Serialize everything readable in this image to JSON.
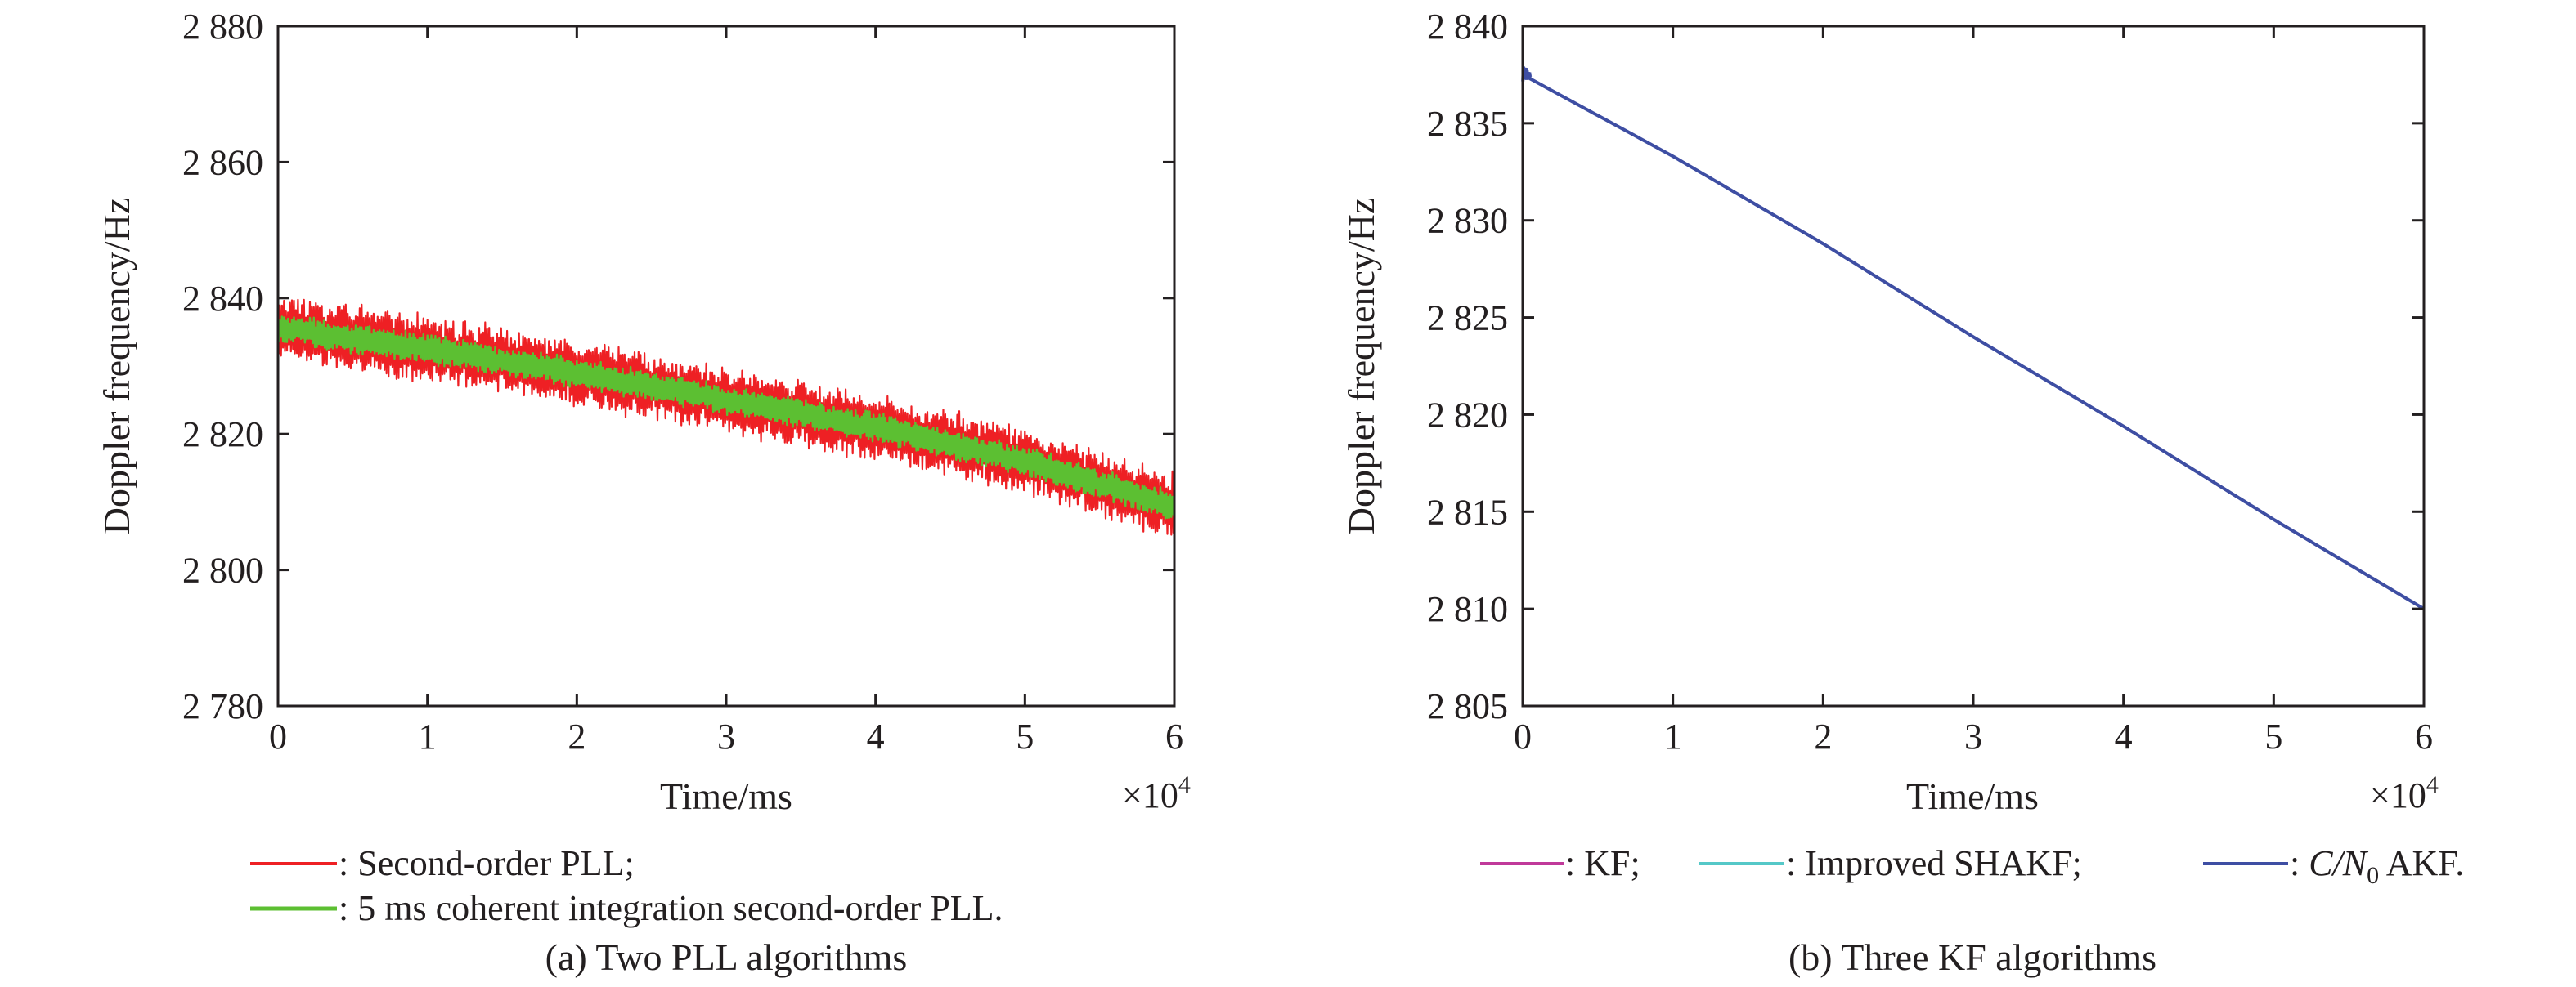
{
  "chart_data": [
    {
      "type": "line",
      "caption": "(a) Two PLL algorithms",
      "xlabel": "Time/ms",
      "ylabel": "Doppler frequency/Hz",
      "x_multiplier": "×10",
      "x_multiplier_exp": "4",
      "xlim": [
        0,
        6
      ],
      "ylim": [
        2780,
        2880
      ],
      "xticks": [
        0,
        1,
        2,
        3,
        4,
        5,
        6
      ],
      "xtick_labels": [
        "0",
        "1",
        "2",
        "3",
        "4",
        "5",
        "6"
      ],
      "yticks": [
        2780,
        2800,
        2820,
        2840,
        2860,
        2880
      ],
      "ytick_labels": [
        "2 780",
        "2 800",
        "2 820",
        "2 840",
        "2 860",
        "2 880"
      ],
      "series": [
        {
          "name": ": Second-order PLL;",
          "color": "#ee2024",
          "x": [
            0,
            1,
            2,
            3,
            4,
            5,
            6
          ],
          "values": [
            2835.6,
            2832.5,
            2829.0,
            2825.0,
            2821.0,
            2816.0,
            2809.3
          ],
          "noise_amplitude_hz": 4.5
        },
        {
          "name": ": 5 ms coherent integration second-order PLL.",
          "color": "#5cbf32",
          "x": [
            0,
            1,
            2,
            3,
            4,
            5,
            6
          ],
          "values": [
            2835.6,
            2832.5,
            2829.0,
            2825.0,
            2821.0,
            2816.0,
            2809.3
          ],
          "noise_amplitude_hz": 2.0
        }
      ],
      "grid": false,
      "legend_position": "below"
    },
    {
      "type": "line",
      "caption": "(b) Three KF algorithms",
      "xlabel": "Time/ms",
      "ylabel": "Doppler frequency/Hz",
      "x_multiplier": "×10",
      "x_multiplier_exp": "4",
      "xlim": [
        0,
        6
      ],
      "ylim": [
        2805,
        2840
      ],
      "xticks": [
        0,
        1,
        2,
        3,
        4,
        5,
        6
      ],
      "xtick_labels": [
        "0",
        "1",
        "2",
        "3",
        "4",
        "5",
        "6"
      ],
      "yticks": [
        2805,
        2810,
        2815,
        2820,
        2825,
        2830,
        2835,
        2840
      ],
      "ytick_labels": [
        "2 805",
        "2 810",
        "2 815",
        "2 820",
        "2 825",
        "2 830",
        "2 835",
        "2 840"
      ],
      "series": [
        {
          "name": ": KF;",
          "color": "#c0399a",
          "x": [
            0,
            1,
            2,
            3,
            4,
            5,
            6
          ],
          "values": [
            2837.5,
            2833.3,
            2828.8,
            2824.0,
            2819.4,
            2814.6,
            2810.0
          ]
        },
        {
          "name": ": Improved SHAKF;",
          "color": "#55c8c8",
          "x": [
            0,
            1,
            2,
            3,
            4,
            5,
            6
          ],
          "values": [
            2837.5,
            2833.3,
            2828.8,
            2824.0,
            2819.4,
            2814.6,
            2810.0
          ]
        },
        {
          "name_italic_prefix": "C/N",
          "name_subscript": "0",
          "name_suffix": " AKF.",
          "color": "#3e4ea3",
          "x": [
            0,
            1,
            2,
            3,
            4,
            5,
            6
          ],
          "values": [
            2837.5,
            2833.3,
            2828.8,
            2824.0,
            2819.4,
            2814.6,
            2810.0
          ]
        }
      ],
      "grid": false,
      "legend_position": "below"
    }
  ]
}
